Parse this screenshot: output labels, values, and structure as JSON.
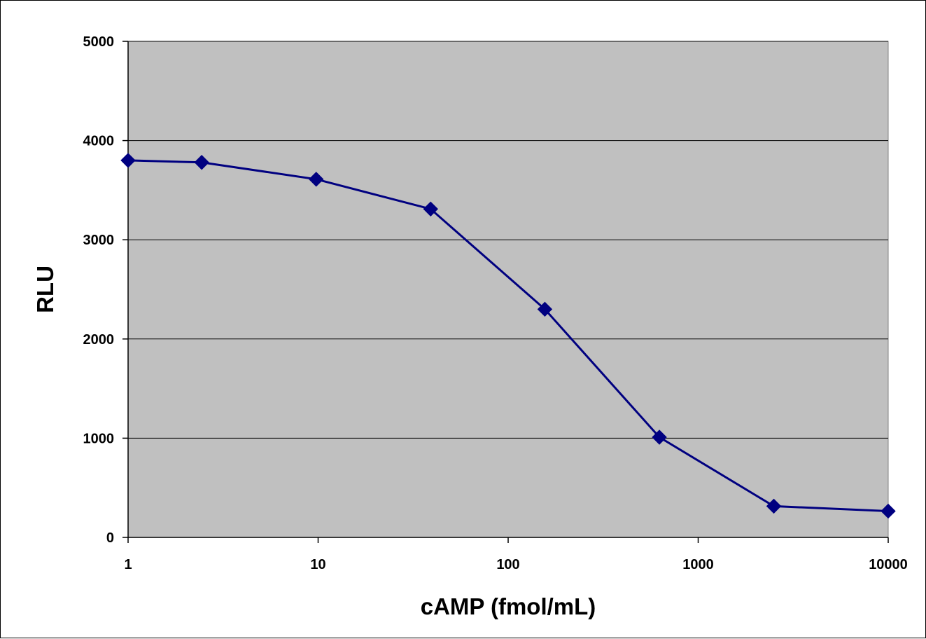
{
  "chart_data": {
    "type": "line",
    "title": "",
    "xlabel": "cAMP (fmol/mL)",
    "ylabel": "RLU",
    "x_scale": "log",
    "xlim": [
      1,
      10000
    ],
    "ylim": [
      0,
      5000
    ],
    "x_ticks": [
      "1",
      "10",
      "100",
      "1000",
      "10000"
    ],
    "y_ticks": [
      "0",
      "1000",
      "2000",
      "3000",
      "4000",
      "5000"
    ],
    "grid": {
      "horizontal": true,
      "vertical": false
    },
    "legend": "none",
    "colors": {
      "series": "#000080",
      "plot_background": "#c0c0c0",
      "gridline": "#000000"
    },
    "series": [
      {
        "x": [
          1,
          2.44,
          9.77,
          39.1,
          156,
          625,
          2500,
          10000
        ],
        "y": [
          3800,
          3780,
          3610,
          3310,
          2300,
          1010,
          315,
          265
        ]
      }
    ]
  }
}
